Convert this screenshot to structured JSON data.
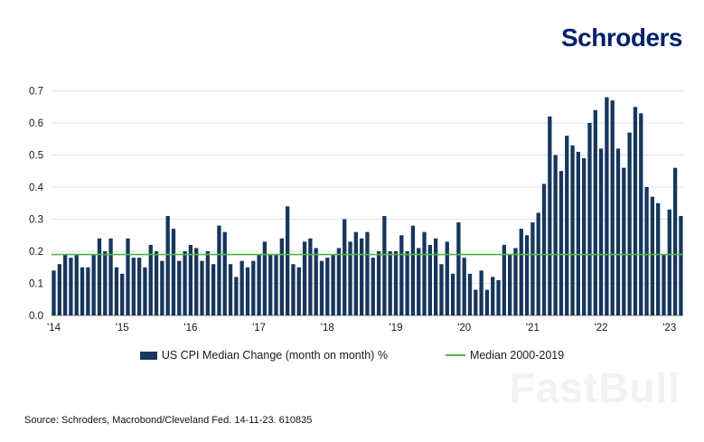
{
  "header": {
    "logo_text": "Schroders",
    "logo_color": "#012169"
  },
  "chart_data": {
    "type": "bar",
    "title": "",
    "xlabel": "",
    "ylabel": "",
    "start_month": "2014-01",
    "end_month": "2023-03",
    "ylim": [
      0,
      0.7
    ],
    "yticks": [
      0.0,
      0.1,
      0.2,
      0.3,
      0.4,
      0.5,
      0.6,
      0.7
    ],
    "grid": true,
    "legend_position": "bottom",
    "x_ticks": [
      {
        "index": 0,
        "label": "'14"
      },
      {
        "index": 12,
        "label": "'15"
      },
      {
        "index": 24,
        "label": "'16"
      },
      {
        "index": 36,
        "label": "'17"
      },
      {
        "index": 48,
        "label": "'18"
      },
      {
        "index": 60,
        "label": "'19"
      },
      {
        "index": 72,
        "label": "'20"
      },
      {
        "index": 84,
        "label": "'21"
      },
      {
        "index": 96,
        "label": "'22"
      },
      {
        "index": 108,
        "label": "'23"
      }
    ],
    "series": [
      {
        "name": "US CPI Median Change (month on month) %",
        "color": "#17365d",
        "values": [
          0.14,
          0.16,
          0.19,
          0.18,
          0.19,
          0.15,
          0.15,
          0.19,
          0.24,
          0.2,
          0.24,
          0.15,
          0.13,
          0.24,
          0.18,
          0.18,
          0.15,
          0.22,
          0.2,
          0.17,
          0.31,
          0.27,
          0.17,
          0.2,
          0.22,
          0.21,
          0.17,
          0.2,
          0.16,
          0.28,
          0.26,
          0.16,
          0.12,
          0.17,
          0.15,
          0.17,
          0.19,
          0.23,
          0.19,
          0.19,
          0.24,
          0.34,
          0.16,
          0.15,
          0.23,
          0.24,
          0.21,
          0.17,
          0.18,
          0.19,
          0.21,
          0.3,
          0.23,
          0.26,
          0.24,
          0.26,
          0.18,
          0.2,
          0.31,
          0.2,
          0.2,
          0.25,
          0.2,
          0.28,
          0.21,
          0.26,
          0.22,
          0.24,
          0.16,
          0.23,
          0.13,
          0.29,
          0.18,
          0.13,
          0.08,
          0.14,
          0.08,
          0.12,
          0.11,
          0.22,
          0.19,
          0.21,
          0.27,
          0.25,
          0.29,
          0.32,
          0.41,
          0.62,
          0.5,
          0.45,
          0.56,
          0.53,
          0.51,
          0.49,
          0.6,
          0.64,
          0.52,
          0.68,
          0.67,
          0.52,
          0.46,
          0.57,
          0.65,
          0.63,
          0.4,
          0.37,
          0.35,
          0.19,
          0.33,
          0.46,
          0.31
        ]
      }
    ],
    "reference_line": {
      "label": "Median 2000-2019",
      "value": 0.19,
      "color": "#4eb748"
    }
  },
  "legend": {
    "series_label": "US CPI Median Change (month on month) %",
    "median_label": "Median 2000-2019"
  },
  "watermark": {
    "text": "FastBull"
  },
  "footer": {
    "source": "Source: Schroders, Macrobond/Cleveland Fed. 14-11-23. 610835"
  }
}
